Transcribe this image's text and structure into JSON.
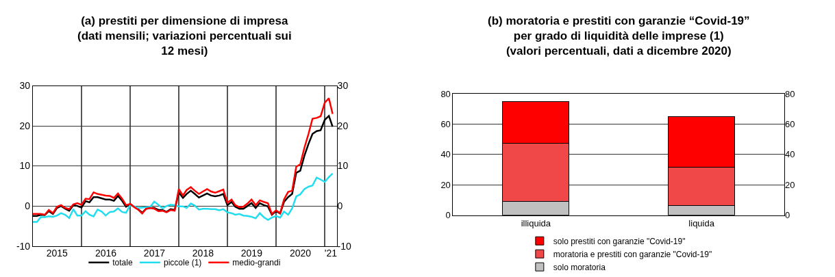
{
  "chart_data": [
    {
      "type": "line",
      "title": "(a) prestiti per dimensione di impresa\n(dati mensili; variazioni percentuali sui\n12 mesi)",
      "x": [
        "2015-01",
        "2015-02",
        "2015-03",
        "2015-04",
        "2015-05",
        "2015-06",
        "2015-07",
        "2015-08",
        "2015-09",
        "2015-10",
        "2015-11",
        "2015-12",
        "2016-01",
        "2016-02",
        "2016-03",
        "2016-04",
        "2016-05",
        "2016-06",
        "2016-07",
        "2016-08",
        "2016-09",
        "2016-10",
        "2016-11",
        "2016-12",
        "2017-01",
        "2017-02",
        "2017-03",
        "2017-04",
        "2017-05",
        "2017-06",
        "2017-07",
        "2017-08",
        "2017-09",
        "2017-10",
        "2017-11",
        "2017-12",
        "2018-01",
        "2018-02",
        "2018-03",
        "2018-04",
        "2018-05",
        "2018-06",
        "2018-07",
        "2018-08",
        "2018-09",
        "2018-10",
        "2018-11",
        "2018-12",
        "2019-01",
        "2019-02",
        "2019-03",
        "2019-04",
        "2019-05",
        "2019-06",
        "2019-07",
        "2019-08",
        "2019-09",
        "2019-10",
        "2019-11",
        "2019-12",
        "2020-01",
        "2020-02",
        "2020-03",
        "2020-04",
        "2020-05",
        "2020-06",
        "2020-07",
        "2020-08",
        "2020-09",
        "2020-10",
        "2020-11",
        "2020-12",
        "2021-01",
        "2021-02",
        "2021-03"
      ],
      "series": [
        {
          "name": "totale",
          "color": "#000000",
          "values": [
            -2.5,
            -2.5,
            -2.2,
            -2.3,
            -1.3,
            -2.0,
            -0.5,
            0.0,
            -0.7,
            -1.2,
            0.2,
            0.0,
            -0.4,
            1.2,
            0.9,
            2.2,
            2.2,
            1.9,
            1.6,
            1.6,
            1.3,
            2.5,
            1.3,
            -0.2,
            0.5,
            -0.2,
            -0.8,
            -1.7,
            -0.7,
            -0.5,
            -0.5,
            -1.0,
            -1.0,
            -1.5,
            -0.8,
            -1.0,
            3.4,
            2.0,
            3.0,
            3.8,
            3.0,
            2.1,
            2.6,
            3.1,
            2.6,
            2.4,
            2.6,
            3.0,
            0.2,
            1.0,
            -0.2,
            -0.7,
            -0.7,
            0.0,
            0.7,
            -0.5,
            0.7,
            0.2,
            -0.1,
            -2.2,
            -1.3,
            -1.9,
            1.0,
            2.2,
            3.0,
            8.3,
            8.8,
            12.5,
            15.5,
            18.0,
            18.7,
            18.9,
            21.5,
            22.5,
            19.8
          ]
        },
        {
          "name": "piccole (1)",
          "color": "#22ddf0",
          "values": [
            -4.0,
            -4.0,
            -2.8,
            -2.8,
            -2.6,
            -2.7,
            -2.4,
            -1.8,
            -2.2,
            -3.0,
            -0.8,
            -2.4,
            -2.4,
            -1.3,
            -2.2,
            -2.6,
            -0.9,
            -1.4,
            -2.4,
            -1.5,
            -1.4,
            -0.6,
            -1.5,
            -1.7,
            0.2,
            -0.1,
            -0.5,
            -0.4,
            -0.3,
            -0.2,
            1.1,
            0.3,
            -0.6,
            0.0,
            0.3,
            0.2,
            -0.1,
            -0.1,
            -0.5,
            0.6,
            0.1,
            -0.9,
            -0.7,
            -0.7,
            -0.8,
            -0.8,
            -1.1,
            -0.8,
            -1.6,
            -1.8,
            -2.2,
            -2.0,
            -2.4,
            -2.5,
            -2.7,
            -3.1,
            -1.8,
            -2.8,
            -3.5,
            -2.9,
            -2.5,
            -2.9,
            -1.4,
            -2.2,
            -0.6,
            2.4,
            2.9,
            4.2,
            4.8,
            5.1,
            7.1,
            6.6,
            6.0,
            7.2,
            8.1
          ]
        },
        {
          "name": "medio-grandi",
          "color": "#ff0000",
          "values": [
            -2.0,
            -2.0,
            -2.0,
            -2.2,
            -1.0,
            -1.8,
            -0.2,
            0.2,
            -0.5,
            -0.8,
            0.4,
            0.7,
            0.3,
            1.8,
            1.7,
            3.4,
            3.0,
            2.8,
            2.6,
            2.5,
            2.0,
            3.1,
            1.8,
            0.2,
            0.5,
            -0.3,
            -0.9,
            -1.9,
            -0.7,
            -0.5,
            -0.7,
            -1.3,
            -1.2,
            -1.6,
            -1.0,
            -1.2,
            4.2,
            2.6,
            4.0,
            4.7,
            3.8,
            3.0,
            3.6,
            4.2,
            3.6,
            3.3,
            3.7,
            4.1,
            0.8,
            1.6,
            0.2,
            -0.3,
            -0.2,
            0.6,
            1.6,
            0.2,
            1.4,
            1.0,
            0.7,
            -2.0,
            -1.1,
            -1.8,
            1.6,
            3.5,
            3.8,
            9.8,
            10.4,
            14.5,
            18.0,
            21.8,
            22.0,
            22.4,
            25.8,
            26.9,
            23.0
          ]
        }
      ],
      "xlim": [
        "2015-01-01",
        "2021-04-01"
      ],
      "xticks": [
        {
          "value": "2016-01-01",
          "label": null
        },
        {
          "value": "2017-01-01",
          "label": null
        },
        {
          "value": "2018-01-01",
          "label": null
        },
        {
          "value": "2019-01-01",
          "label": null
        },
        {
          "value": "2020-01-01",
          "label": null
        },
        {
          "value": "2021-01-01",
          "label": null
        },
        {
          "value": "2015-07-02",
          "label": "2015"
        },
        {
          "value": "2016-07-02",
          "label": "2016"
        },
        {
          "value": "2017-07-02",
          "label": "2017"
        },
        {
          "value": "2018-07-02",
          "label": "2018"
        },
        {
          "value": "2019-07-02",
          "label": "2019"
        },
        {
          "value": "2020-07-02",
          "label": "2020"
        },
        {
          "value": "2021-02-15",
          "label": "'21"
        }
      ],
      "ylim": [
        -10,
        30
      ],
      "yticks": [
        -10,
        0,
        10,
        20,
        30
      ],
      "y2lim": [
        -10,
        30
      ],
      "y2ticks": [
        -10,
        0,
        10,
        20,
        30
      ],
      "grid": true,
      "legend": "bottom",
      "marker": "none",
      "line_style": "solid"
    },
    {
      "type": "bar",
      "stacked": true,
      "title": "(b) moratoria e prestiti con garanzie “Covid-19”\nper grado di liquidità delle imprese (1)\n(valori percentuali, dati a dicembre 2020)",
      "categories": [
        "illiquida",
        "liquida"
      ],
      "series": [
        {
          "name": "solo moratoria",
          "color": "#c0c0c0",
          "values": [
            9,
            6.5
          ]
        },
        {
          "name": "moratoria e prestiti con garanzie \"Covid-19\"",
          "color": "#f04848",
          "values": [
            38.5,
            25
          ]
        },
        {
          "name": "solo prestiti con garanzie \"Covid-19\"",
          "color": "#ff0000",
          "values": [
            27.5,
            33.5
          ]
        }
      ],
      "ylim": [
        0,
        80
      ],
      "yticks": [
        0,
        20,
        40,
        60,
        80
      ],
      "y2lim": [
        0,
        80
      ],
      "y2ticks": [
        0,
        20,
        40,
        60,
        80
      ],
      "grid": "y",
      "legend": "bottom"
    }
  ]
}
